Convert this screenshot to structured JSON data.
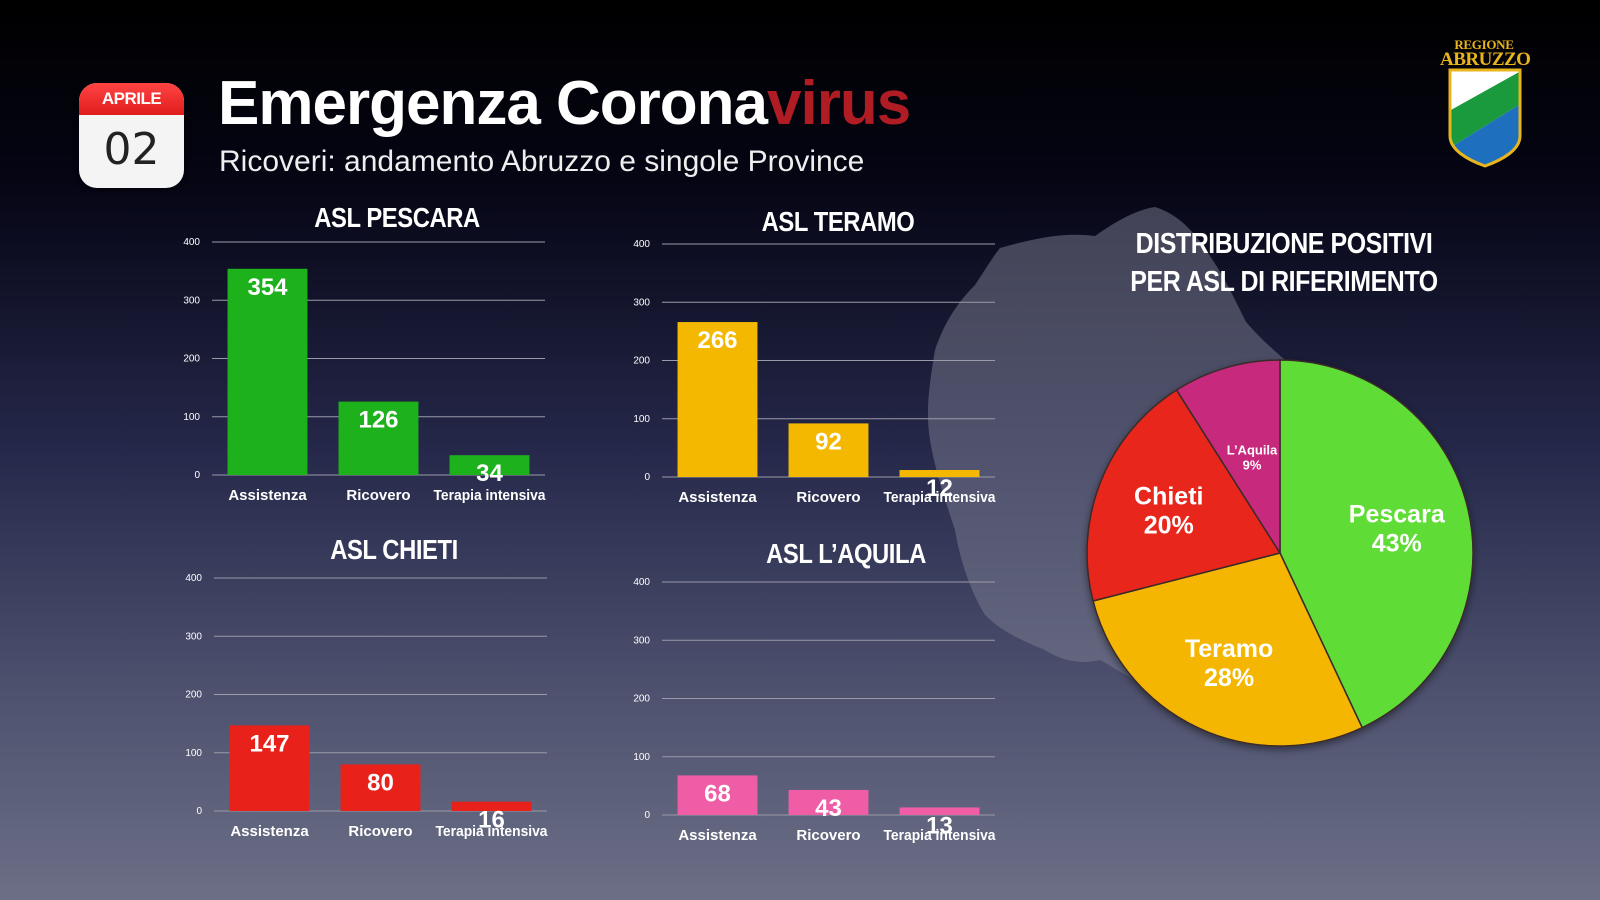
{
  "calendar": {
    "month": "APRILE",
    "day": "02"
  },
  "header": {
    "title_main": "Emergenza Corona",
    "title_accent": "virus",
    "subtitle": "Ricoveri: andamento Abruzzo e singole Province"
  },
  "logo": {
    "line1": "REGIONE",
    "line2": "ABRUZZO"
  },
  "colors": {
    "pescara": "#1db21b",
    "teramo": "#f5b800",
    "chieti": "#e8221b",
    "laquila": "#ee5da6",
    "pie_pescara": "#5edc36",
    "pie_teramo": "#f4b606",
    "pie_chieti": "#e8261a",
    "pie_laquila": "#c72b7c",
    "title_accent": "#b01c24"
  },
  "chart_data": [
    {
      "type": "bar",
      "title": "ASL PESCARA",
      "categories": [
        "Assistenza",
        "Ricovero",
        "Terapia intensiva"
      ],
      "values": [
        354,
        126,
        34
      ],
      "ylim": [
        0,
        400
      ],
      "yticks": [
        0,
        100,
        200,
        300,
        400
      ],
      "color": "#1db21b",
      "grid": true
    },
    {
      "type": "bar",
      "title": "ASL TERAMO",
      "categories": [
        "Assistenza",
        "Ricovero",
        "Terapia intensiva"
      ],
      "values": [
        266,
        92,
        12
      ],
      "ylim": [
        0,
        400
      ],
      "yticks": [
        0,
        100,
        200,
        300,
        400
      ],
      "color": "#f5b800",
      "grid": true
    },
    {
      "type": "bar",
      "title": "ASL CHIETI",
      "categories": [
        "Assistenza",
        "Ricovero",
        "Terapia intensiva"
      ],
      "values": [
        147,
        80,
        16
      ],
      "ylim": [
        0,
        400
      ],
      "yticks": [
        0,
        100,
        200,
        300,
        400
      ],
      "color": "#e8221b",
      "grid": true
    },
    {
      "type": "bar",
      "title": "ASL L’AQUILA",
      "categories": [
        "Assistenza",
        "Ricovero",
        "Terapia intensiva"
      ],
      "values": [
        68,
        43,
        13
      ],
      "ylim": [
        0,
        400
      ],
      "yticks": [
        0,
        100,
        200,
        300,
        400
      ],
      "color": "#ee5da6",
      "grid": true
    },
    {
      "type": "pie",
      "title": "DISTRIBUZIONE POSITIVI PER ASL DI RIFERIMENTO",
      "title_lines": [
        "DISTRIBUZIONE POSITIVI",
        "PER ASL DI RIFERIMENTO"
      ],
      "slices": [
        {
          "label": "Pescara",
          "value": 43,
          "value_label": "43%",
          "color": "#5edc36"
        },
        {
          "label": "Teramo",
          "value": 28,
          "value_label": "28%",
          "color": "#f4b606"
        },
        {
          "label": "Chieti",
          "value": 20,
          "value_label": "20%",
          "color": "#e8261a"
        },
        {
          "label": "L’Aquila",
          "value": 9,
          "value_label": "9%",
          "color": "#c72b7c"
        }
      ]
    }
  ]
}
